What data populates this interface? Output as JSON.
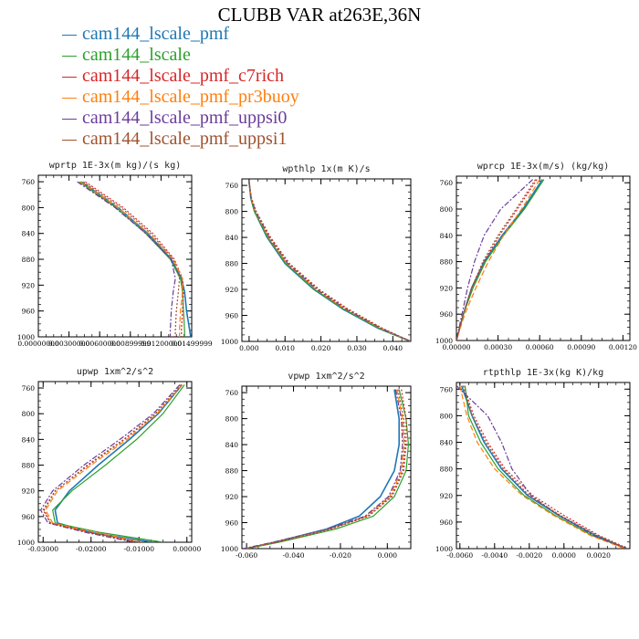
{
  "title": "CLUBB VAR at263E,36N",
  "colors": {
    "cam144_lscale_pmf": "#1f77b4",
    "cam144_lscale": "#2ca02c",
    "cam144_lscale_pmf_c7rich": "#d62728",
    "cam144_lscale_pmf_pr3buoy": "#ff7f0e",
    "cam144_lscale_pmf_uppsi0": "#6a3d9a",
    "cam144_lscale_pmf_uppsi1": "#a0522d"
  },
  "legend": [
    {
      "label": "cam144_lscale_pmf",
      "color": "#1f77b4"
    },
    {
      "label": "cam144_lscale",
      "color": "#2ca02c"
    },
    {
      "label": "cam144_lscale_pmf_c7rich",
      "color": "#d62728"
    },
    {
      "label": "cam144_lscale_pmf_pr3buoy",
      "color": "#ff7f0e"
    },
    {
      "label": "cam144_lscale_pmf_uppsi0",
      "color": "#6a3d9a"
    },
    {
      "label": "cam144_lscale_pmf_uppsi1",
      "color": "#a0522d"
    }
  ],
  "chart_data": [
    {
      "type": "line",
      "title": "wprtp  1E-3x(m kg)/(s kg)",
      "xlim": [
        0.0,
        0.01499999
      ],
      "ylim": [
        1000,
        750
      ],
      "xticks": [
        0.0,
        0.003,
        0.006,
        0.009,
        0.012,
        0.015
      ],
      "xtick_labels": [
        "0.00000000",
        "0.00300000",
        "0.00600000",
        "0.00899999",
        "0.01200000",
        "0.01499999"
      ],
      "yticks": [
        760,
        800,
        840,
        880,
        920,
        960,
        1000
      ],
      "ytick_labels": [
        "760",
        "800",
        "840",
        "880",
        "920",
        "960",
        "1000"
      ],
      "y": [
        760,
        800,
        840,
        880,
        910,
        930,
        960,
        990,
        1000
      ],
      "series": [
        {
          "name": "cam144_lscale_pmf",
          "x": [
            0.0042,
            0.0078,
            0.0107,
            0.013,
            0.014,
            0.0143,
            0.0145,
            0.0148,
            0.0149
          ]
        },
        {
          "name": "cam144_lscale",
          "x": [
            0.004,
            0.0076,
            0.0105,
            0.0129,
            0.0139,
            0.0141,
            0.0142,
            0.0143,
            0.0143
          ]
        },
        {
          "name": "cam144_lscale_pmf_c7rich",
          "x": [
            0.0046,
            0.0083,
            0.0112,
            0.0133,
            0.0141,
            0.0142,
            0.0141,
            0.014,
            0.014
          ]
        },
        {
          "name": "cam144_lscale_pmf_pr3buoy",
          "x": [
            0.0041,
            0.0078,
            0.0108,
            0.0132,
            0.0141,
            0.0141,
            0.0139,
            0.0138,
            0.0138
          ]
        },
        {
          "name": "cam144_lscale_pmf_uppsi0",
          "x": [
            0.0038,
            0.0075,
            0.0105,
            0.013,
            0.0134,
            0.0132,
            0.013,
            0.0129,
            0.0129
          ]
        },
        {
          "name": "cam144_lscale_pmf_uppsi1",
          "x": [
            0.0044,
            0.0081,
            0.011,
            0.0132,
            0.0138,
            0.0137,
            0.0135,
            0.0134,
            0.0134
          ]
        }
      ]
    },
    {
      "type": "line",
      "title": "wpthlp  1x(m K)/s",
      "xlim": [
        -0.002,
        0.045
      ],
      "ylim": [
        1000,
        750
      ],
      "xticks": [
        0.0,
        0.01,
        0.02,
        0.03,
        0.04
      ],
      "xtick_labels": [
        "0.000",
        "0.010",
        "0.020",
        "0.030",
        "0.040"
      ],
      "yticks": [
        760,
        800,
        840,
        880,
        920,
        960,
        1000
      ],
      "ytick_labels": [
        "760",
        "800",
        "840",
        "880",
        "920",
        "960",
        "1000"
      ],
      "y": [
        755,
        780,
        800,
        840,
        880,
        920,
        950,
        980,
        1000
      ],
      "series": [
        {
          "name": "cam144_lscale_pmf",
          "x": [
            0.0,
            0.0005,
            0.0015,
            0.005,
            0.01,
            0.018,
            0.026,
            0.036,
            0.045
          ]
        },
        {
          "name": "cam144_lscale",
          "x": [
            0.0,
            0.0005,
            0.0015,
            0.0052,
            0.0102,
            0.0182,
            0.0262,
            0.0362,
            0.045
          ]
        },
        {
          "name": "cam144_lscale_pmf_c7rich",
          "x": [
            0.0,
            0.0007,
            0.002,
            0.006,
            0.0112,
            0.0195,
            0.0275,
            0.0372,
            0.045
          ]
        },
        {
          "name": "cam144_lscale_pmf_pr3buoy",
          "x": [
            0.0,
            0.0006,
            0.0017,
            0.0054,
            0.0105,
            0.0186,
            0.0266,
            0.0366,
            0.045
          ]
        },
        {
          "name": "cam144_lscale_pmf_uppsi0",
          "x": [
            0.0,
            0.0006,
            0.0018,
            0.0056,
            0.0107,
            0.0188,
            0.0268,
            0.0368,
            0.045
          ]
        },
        {
          "name": "cam144_lscale_pmf_uppsi1",
          "x": [
            0.0,
            0.0007,
            0.0019,
            0.0058,
            0.011,
            0.0192,
            0.0272,
            0.037,
            0.045
          ]
        }
      ]
    },
    {
      "type": "line",
      "title": "wprcp  1E-3x(m/s) (kg/kg)",
      "xlim": [
        0.0,
        0.00125
      ],
      "ylim": [
        1000,
        750
      ],
      "xticks": [
        0.0,
        0.0003,
        0.0006,
        0.0009,
        0.0012
      ],
      "xtick_labels": [
        "0.00000",
        "0.00030",
        "0.00060",
        "0.00090",
        "0.00120"
      ],
      "yticks": [
        760,
        800,
        840,
        880,
        920,
        960,
        1000
      ],
      "ytick_labels": [
        "760",
        "800",
        "840",
        "880",
        "920",
        "960",
        "1000"
      ],
      "y": [
        755,
        800,
        840,
        880,
        920,
        960,
        1000
      ],
      "series": [
        {
          "name": "cam144_lscale_pmf",
          "x": [
            0.00062,
            0.00048,
            0.00033,
            0.0002,
            0.00011,
            5e-05,
            0.0
          ]
        },
        {
          "name": "cam144_lscale",
          "x": [
            0.00063,
            0.00049,
            0.00034,
            0.00021,
            0.00012,
            5e-05,
            0.0
          ]
        },
        {
          "name": "cam144_lscale_pmf_c7rich",
          "x": [
            0.00058,
            0.00044,
            0.00031,
            0.0002,
            0.00011,
            5e-05,
            0.0
          ]
        },
        {
          "name": "cam144_lscale_pmf_pr3buoy",
          "x": [
            0.0006,
            0.00047,
            0.00034,
            0.00023,
            0.00014,
            6e-05,
            0.0
          ]
        },
        {
          "name": "cam144_lscale_pmf_uppsi0",
          "x": [
            0.00055,
            0.00032,
            0.0002,
            0.00013,
            8e-05,
            4e-05,
            0.0
          ]
        },
        {
          "name": "cam144_lscale_pmf_uppsi1",
          "x": [
            0.00057,
            0.00043,
            0.0003,
            0.00019,
            0.00011,
            5e-05,
            0.0
          ]
        }
      ]
    },
    {
      "type": "line",
      "title": "upwp  1xm^2/s^2",
      "xlim": [
        -0.031,
        0.001
      ],
      "ylim": [
        1000,
        750
      ],
      "xticks": [
        -0.03,
        -0.02,
        -0.01,
        0.0
      ],
      "xtick_labels": [
        "-0.03000",
        "-0.02000",
        "-0.01000",
        "0.00000"
      ],
      "yticks": [
        760,
        800,
        840,
        880,
        920,
        960,
        1000
      ],
      "ytick_labels": [
        "760",
        "800",
        "840",
        "880",
        "920",
        "960",
        "1000"
      ],
      "y": [
        755,
        800,
        840,
        880,
        920,
        950,
        970,
        985,
        1000
      ],
      "series": [
        {
          "name": "cam144_lscale_pmf",
          "x": [
            -0.001,
            -0.006,
            -0.012,
            -0.0185,
            -0.0245,
            -0.0275,
            -0.027,
            -0.02,
            -0.007
          ]
        },
        {
          "name": "cam144_lscale",
          "x": [
            -0.0005,
            -0.005,
            -0.0105,
            -0.017,
            -0.024,
            -0.028,
            -0.0275,
            -0.018,
            -0.005
          ]
        },
        {
          "name": "cam144_lscale_pmf_c7rich",
          "x": [
            -0.0012,
            -0.0065,
            -0.013,
            -0.0205,
            -0.0275,
            -0.03,
            -0.0285,
            -0.02,
            -0.01
          ]
        },
        {
          "name": "cam144_lscale_pmf_pr3buoy",
          "x": [
            -0.001,
            -0.0062,
            -0.0125,
            -0.02,
            -0.027,
            -0.0295,
            -0.028,
            -0.019,
            -0.009
          ]
        },
        {
          "name": "cam144_lscale_pmf_uppsi0",
          "x": [
            -0.0015,
            -0.007,
            -0.014,
            -0.0215,
            -0.028,
            -0.0305,
            -0.029,
            -0.021,
            -0.011
          ]
        },
        {
          "name": "cam144_lscale_pmf_uppsi1",
          "x": [
            -0.0012,
            -0.0066,
            -0.0132,
            -0.0208,
            -0.0274,
            -0.0298,
            -0.0284,
            -0.0205,
            -0.01
          ]
        }
      ]
    },
    {
      "type": "line",
      "title": "vpwp  1xm^2/s^2",
      "xlim": [
        -0.062,
        0.01
      ],
      "ylim": [
        1000,
        750
      ],
      "xticks": [
        -0.06,
        -0.04,
        -0.02,
        0.0
      ],
      "xtick_labels": [
        "-0.060",
        "-0.040",
        "-0.020",
        "0.000"
      ],
      "yticks": [
        760,
        800,
        840,
        880,
        920,
        960,
        1000
      ],
      "ytick_labels": [
        "760",
        "800",
        "840",
        "880",
        "920",
        "960",
        "1000"
      ],
      "y": [
        755,
        800,
        840,
        880,
        920,
        950,
        970,
        990,
        1000
      ],
      "series": [
        {
          "name": "cam144_lscale_pmf",
          "x": [
            0.003,
            0.005,
            0.005,
            0.003,
            -0.003,
            -0.012,
            -0.026,
            -0.048,
            -0.06
          ]
        },
        {
          "name": "cam144_lscale",
          "x": [
            0.005,
            0.008,
            0.009,
            0.008,
            0.003,
            -0.006,
            -0.022,
            -0.046,
            -0.06
          ]
        },
        {
          "name": "cam144_lscale_pmf_c7rich",
          "x": [
            0.006,
            0.008,
            0.008,
            0.007,
            0.002,
            -0.008,
            -0.024,
            -0.047,
            -0.061
          ]
        },
        {
          "name": "cam144_lscale_pmf_pr3buoy",
          "x": [
            0.004,
            0.0065,
            0.007,
            0.006,
            0.001,
            -0.009,
            -0.025,
            -0.048,
            -0.061
          ]
        },
        {
          "name": "cam144_lscale_pmf_uppsi0",
          "x": [
            0.0035,
            0.006,
            0.0065,
            0.0055,
            0.0005,
            -0.0095,
            -0.0255,
            -0.0485,
            -0.0615
          ]
        },
        {
          "name": "cam144_lscale_pmf_uppsi1",
          "x": [
            0.0045,
            0.007,
            0.0075,
            0.0065,
            0.0015,
            -0.0085,
            -0.0245,
            -0.0475,
            -0.0605
          ]
        }
      ]
    },
    {
      "type": "line",
      "title": "rtpthlp  1E-3x(kg K)/kg",
      "xlim": [
        -0.0062,
        0.0038
      ],
      "ylim": [
        1000,
        750
      ],
      "xticks": [
        -0.006,
        -0.004,
        -0.002,
        0.0,
        0.002
      ],
      "xtick_labels": [
        "-0.0060",
        "-0.0040",
        "-0.0020",
        "0.0000",
        "0.0020"
      ],
      "yticks": [
        760,
        800,
        840,
        880,
        920,
        960,
        1000
      ],
      "ytick_labels": [
        "760",
        "800",
        "840",
        "880",
        "920",
        "960",
        "1000"
      ],
      "y": [
        755,
        800,
        840,
        880,
        920,
        950,
        980,
        1000
      ],
      "series": [
        {
          "name": "cam144_lscale_pmf",
          "x": [
            -0.0059,
            -0.0053,
            -0.0046,
            -0.0036,
            -0.0021,
            -0.0003,
            0.0018,
            0.0036
          ]
        },
        {
          "name": "cam144_lscale",
          "x": [
            -0.0057,
            -0.0055,
            -0.0048,
            -0.0038,
            -0.0023,
            -0.0005,
            0.0016,
            0.0036
          ]
        },
        {
          "name": "cam144_lscale_pmf_c7rich",
          "x": [
            -0.0058,
            -0.0052,
            -0.0044,
            -0.0034,
            -0.0018,
            0.0,
            0.002,
            0.0037
          ]
        },
        {
          "name": "cam144_lscale_pmf_pr3buoy",
          "x": [
            -0.006,
            -0.0056,
            -0.005,
            -0.004,
            -0.0024,
            -0.0006,
            0.0015,
            0.0035
          ]
        },
        {
          "name": "cam144_lscale_pmf_uppsi0",
          "x": [
            -0.0062,
            -0.0044,
            -0.0036,
            -0.003,
            -0.0019,
            -0.0003,
            0.0017,
            0.0036
          ]
        },
        {
          "name": "cam144_lscale_pmf_uppsi1",
          "x": [
            -0.0058,
            -0.0053,
            -0.0045,
            -0.0035,
            -0.002,
            -0.0002,
            0.0019,
            0.0036
          ]
        }
      ]
    }
  ]
}
